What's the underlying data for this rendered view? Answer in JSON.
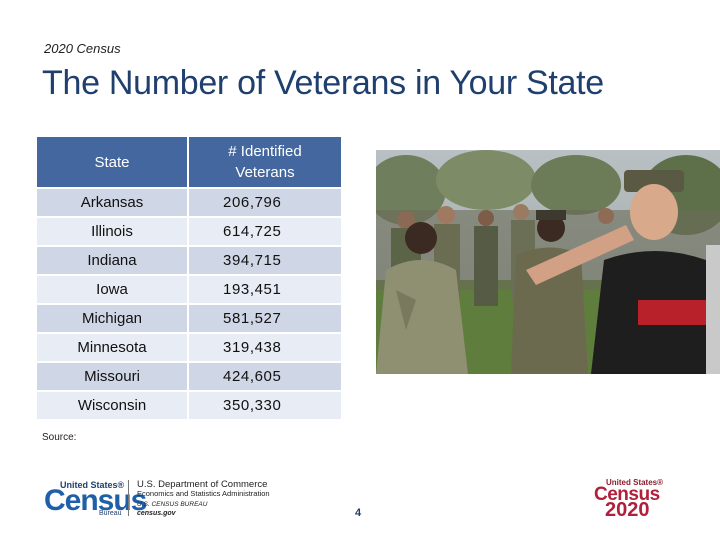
{
  "header": {
    "subtitle": "2020 Census",
    "title": "The Number of Veterans in Your State"
  },
  "table": {
    "headers": [
      "State",
      "# Identified Veterans"
    ],
    "rows": [
      {
        "state": "Arkansas",
        "veterans": "206,796"
      },
      {
        "state": "Illinois",
        "veterans": "614,725"
      },
      {
        "state": "Indiana",
        "veterans": "394,715"
      },
      {
        "state": "Iowa",
        "veterans": "193,451"
      },
      {
        "state": "Michigan",
        "veterans": "581,527"
      },
      {
        "state": "Minnesota",
        "veterans": "319,438"
      },
      {
        "state": "Missouri",
        "veterans": "424,605"
      },
      {
        "state": "Wisconsin",
        "veterans": "350,330"
      }
    ]
  },
  "footer": {
    "source_label": "Source:",
    "page_number": "4",
    "left_logo": {
      "united_states": "United States®",
      "census": "Census",
      "bureau": "Bureau",
      "dept_line1": "U.S. Department of Commerce",
      "dept_line2": "Economics and Statistics Administration",
      "dept_line3": "U.S. CENSUS BUREAU",
      "dept_line4": "census.gov"
    },
    "right_logo": {
      "united_states": "United States®",
      "census": "Census",
      "year": "2020"
    }
  },
  "colors": {
    "title": "#1f3f6e",
    "table_header": "#43679e",
    "row_dark": "#cfd6e6",
    "row_light": "#e8ecf4",
    "census_blue": "#1f5fa8",
    "census_red": "#b0203a"
  }
}
